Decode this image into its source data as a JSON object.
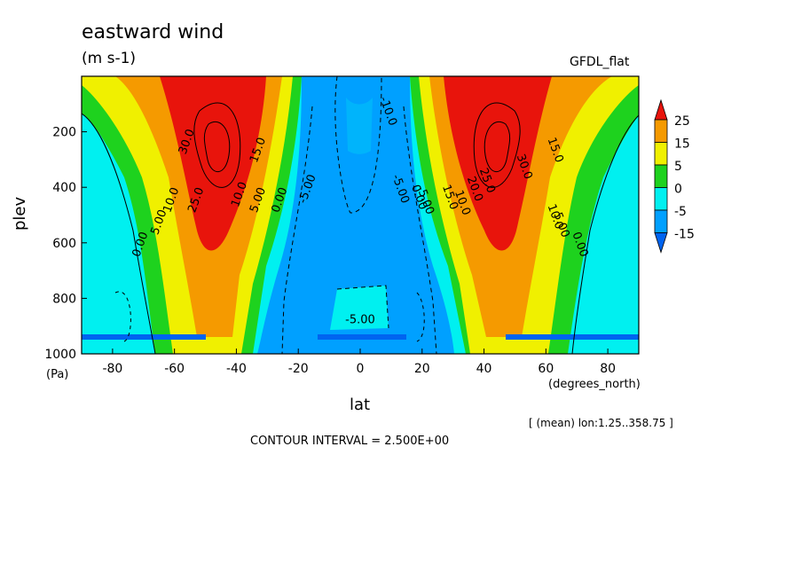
{
  "title": "eastward wind",
  "units": "(m s-1)",
  "model": "GFDL_flat",
  "xlabel": "lat",
  "ylabel": "plev",
  "y_unit": "(Pa)",
  "x_unit": "(degrees_north)",
  "mean_note": "[ (mean) lon:1.25..358.75 ]",
  "contour_interval": "CONTOUR INTERVAL = 2.500E+00",
  "chart_data": {
    "type": "heatmap",
    "title": "eastward wind",
    "xlabel": "lat",
    "ylabel": "plev",
    "xlim": [
      -90,
      90
    ],
    "ylim": [
      1000,
      0
    ],
    "x_ticks": [
      -80,
      -60,
      -40,
      -20,
      0,
      20,
      40,
      60,
      80
    ],
    "y_ticks": [
      200,
      400,
      600,
      800,
      1000
    ],
    "colorbar": {
      "labels": [
        "25",
        "15",
        "5",
        "0",
        "-5",
        "-15"
      ],
      "colors": [
        "#e8140c",
        "#f59a00",
        "#f0f000",
        "#1ed21e",
        "#00f0f0",
        "#00a0ff",
        "#0064f0"
      ]
    },
    "contour_labels": [
      {
        "text": "30.0",
        "x": -55,
        "y": 240
      },
      {
        "text": "15.0",
        "x": -32,
        "y": 270
      },
      {
        "text": "10.0",
        "x": -38,
        "y": 430
      },
      {
        "text": "5.00",
        "x": -32,
        "y": 450
      },
      {
        "text": "0.00",
        "x": -25,
        "y": 450
      },
      {
        "text": "-5.00",
        "x": -16,
        "y": 410
      },
      {
        "text": "-10.0",
        "x": 8,
        "y": 130
      },
      {
        "text": "-5.00",
        "x": 12,
        "y": 410
      },
      {
        "text": "0.00",
        "x": 18,
        "y": 440
      },
      {
        "text": "-5.00",
        "x": 20,
        "y": 450
      },
      {
        "text": "15.0",
        "x": 28,
        "y": 440
      },
      {
        "text": "10.0",
        "x": 32,
        "y": 460
      },
      {
        "text": "20.0",
        "x": 36,
        "y": 410
      },
      {
        "text": "25.0",
        "x": 40,
        "y": 380
      },
      {
        "text": "30.0",
        "x": 52,
        "y": 330
      },
      {
        "text": "15.0",
        "x": 62,
        "y": 270
      },
      {
        "text": "10.0",
        "x": 62,
        "y": 510
      },
      {
        "text": "5.00",
        "x": 64,
        "y": 540
      },
      {
        "text": "0.00",
        "x": 70,
        "y": 610
      },
      {
        "text": "0.00",
        "x": -70,
        "y": 610
      },
      {
        "text": "5.00",
        "x": -64,
        "y": 530
      },
      {
        "text": "10.0",
        "x": -60,
        "y": 450
      },
      {
        "text": "25.0",
        "x": -52,
        "y": 450
      },
      {
        "text": "-5.00",
        "x": 0,
        "y": 890
      }
    ]
  }
}
